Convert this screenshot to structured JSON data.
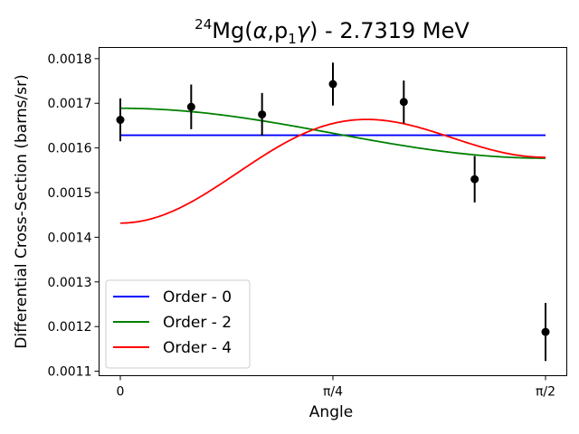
{
  "chart_data": {
    "type": "scatter",
    "title": {
      "superscript": "24",
      "main": "Mg(",
      "alpha": "α",
      "comma_p": ",p",
      "subscript": "1",
      "gamma": "γ",
      "rest": ") - 2.7319 MeV"
    },
    "xlabel": "Angle",
    "ylabel": "Differential Cross-Section (barns/sr)",
    "xlim": [
      -0.0785,
      1.6493
    ],
    "ylim": [
      0.00109,
      0.001825
    ],
    "xticks": [
      {
        "value": 0,
        "label": "0"
      },
      {
        "value": 0.7854,
        "label": "π/4"
      },
      {
        "value": 1.5708,
        "label": "π/2"
      }
    ],
    "yticks": [
      0.0011,
      0.0012,
      0.0013,
      0.0014,
      0.0015,
      0.0016,
      0.0017,
      0.0018
    ],
    "ytick_labels": [
      "0.0011",
      "0.0012",
      "0.0013",
      "0.0014",
      "0.0015",
      "0.0016",
      "0.0017",
      "0.0018"
    ],
    "grid": false,
    "legend_position": "lower-left",
    "data_points": {
      "name": "Data",
      "color": "#000000",
      "x": [
        0.0,
        0.2618,
        0.5236,
        0.7854,
        1.0472,
        1.309,
        1.5708
      ],
      "y": [
        0.001663,
        0.001692,
        0.001675,
        0.001743,
        0.001703,
        0.00153,
        0.001188
      ],
      "yerr": [
        4.8e-05,
        5e-05,
        4.8e-05,
        4.8e-05,
        4.8e-05,
        5.2e-05,
        6.5e-05
      ]
    },
    "series": [
      {
        "name": "Order - 0",
        "color": "#0000ff",
        "coeffs": [
          0.0016285,
          0,
          0
        ]
      },
      {
        "name": "Order - 2",
        "color": "#008000",
        "coeffs": [
          0.0016143,
          7.453e-05,
          0
        ]
      },
      {
        "name": "Order - 4",
        "color": "#ff0000",
        "coeffs": [
          0.0016096,
          -4.13e-05,
          -0.0001366
        ]
      }
    ]
  }
}
